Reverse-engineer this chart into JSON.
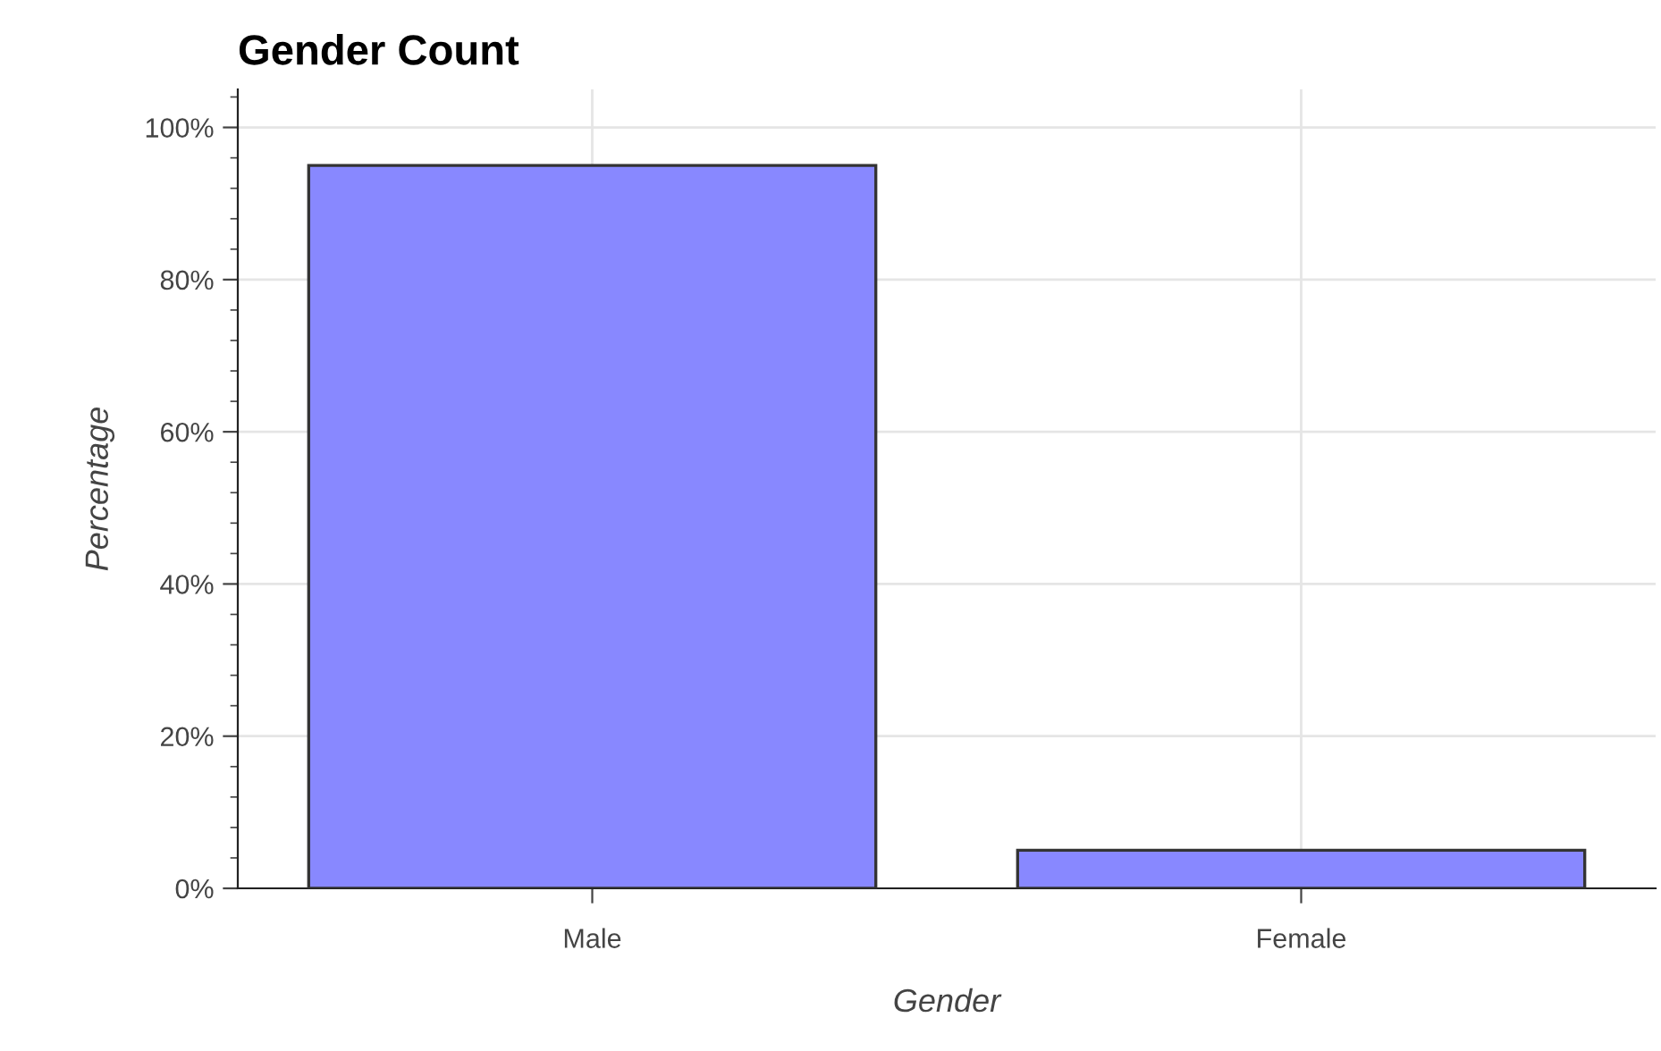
{
  "chart_data": {
    "type": "bar",
    "title": "Gender Count",
    "xlabel": "Gender",
    "ylabel": "Percentage",
    "categories": [
      "Male",
      "Female"
    ],
    "values": [
      95,
      5
    ],
    "color": "#8888ff",
    "ylim": [
      0,
      105
    ],
    "yticks": [
      {
        "value": 0,
        "label": "0%"
      },
      {
        "value": 20,
        "label": "20%"
      },
      {
        "value": 40,
        "label": "40%"
      },
      {
        "value": 60,
        "label": "60%"
      },
      {
        "value": 80,
        "label": "80%"
      },
      {
        "value": 100,
        "label": "100%"
      }
    ],
    "grid": true
  }
}
